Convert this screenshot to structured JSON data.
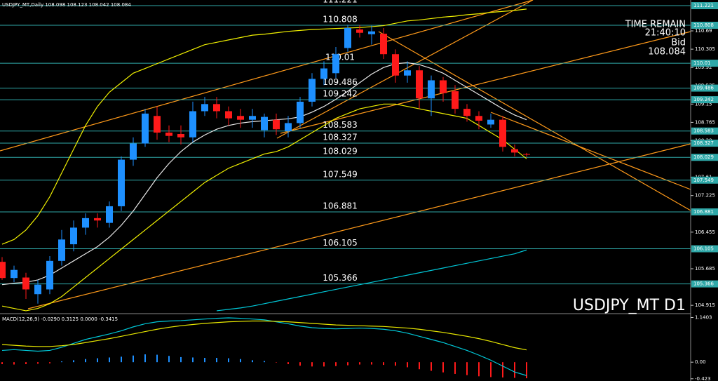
{
  "chart_data": [
    {
      "type": "candlestick",
      "title": "USDJPY_MT,Daily 108.098 108.123 108.042 108.084",
      "symbol_label": "USDJPY_MT D1",
      "time_remain_label": "TIME REMAIN",
      "time_remain": "21:40:10",
      "bid_label": "Bid",
      "bid": 108.084,
      "open": [
        105.83,
        105.49,
        105.5,
        105.15,
        105.25,
        105.85,
        106.2,
        106.55,
        106.75,
        106.65,
        107.0,
        107.98,
        108.32,
        108.9,
        108.55,
        108.52,
        108.45,
        109.0,
        109.15,
        109.0,
        108.9,
        108.82,
        108.6,
        108.82,
        108.58,
        108.75,
        109.2,
        109.68,
        109.8,
        110.33,
        110.72,
        110.62,
        110.63,
        110.2,
        109.75,
        109.86,
        109.27,
        109.65,
        109.42,
        109.05,
        108.9,
        108.72,
        108.82,
        108.2,
        108.098
      ],
      "high": [
        105.93,
        105.75,
        105.6,
        105.45,
        105.95,
        106.5,
        106.7,
        106.85,
        106.85,
        107.1,
        108.05,
        108.45,
        109.05,
        109.1,
        108.7,
        108.7,
        109.2,
        109.3,
        109.3,
        109.1,
        109.05,
        109.05,
        108.95,
        108.95,
        108.9,
        109.3,
        109.8,
        110.05,
        110.35,
        110.82,
        110.81,
        110.8,
        110.75,
        110.3,
        110.05,
        109.95,
        109.75,
        109.72,
        109.55,
        109.15,
        109.0,
        108.95,
        108.9,
        108.3,
        108.123
      ],
      "low": [
        105.45,
        105.4,
        105.05,
        104.95,
        105.15,
        105.75,
        106.05,
        106.4,
        106.55,
        106.55,
        106.9,
        107.85,
        108.25,
        108.4,
        108.35,
        108.3,
        108.35,
        108.9,
        108.85,
        108.7,
        108.65,
        108.65,
        108.45,
        108.5,
        108.45,
        108.65,
        109.1,
        109.55,
        109.7,
        110.25,
        110.55,
        110.4,
        110.1,
        109.6,
        109.6,
        109.05,
        108.9,
        109.2,
        108.95,
        108.78,
        108.62,
        108.65,
        108.15,
        108.05,
        108.042
      ],
      "close": [
        105.49,
        105.66,
        105.25,
        105.35,
        105.85,
        106.3,
        106.55,
        106.75,
        106.7,
        107.0,
        107.98,
        108.32,
        108.95,
        108.55,
        108.48,
        108.45,
        109.0,
        109.15,
        109.0,
        108.85,
        108.82,
        108.9,
        108.88,
        108.62,
        108.75,
        109.2,
        109.68,
        109.9,
        110.2,
        110.75,
        110.65,
        110.68,
        110.2,
        109.75,
        109.86,
        109.27,
        109.65,
        109.38,
        109.05,
        108.9,
        108.8,
        108.82,
        108.25,
        108.13,
        108.084
      ],
      "up_color": "#1e90ff",
      "down_color": "#ff1a1a",
      "ylim": [
        104.74,
        111.34
      ],
      "yticks": [
        110.69,
        110.305,
        109.92,
        109.535,
        109.15,
        108.765,
        108.38,
        107.61,
        107.225,
        106.455,
        105.685,
        104.915
      ],
      "levels": [
        111.221,
        110.808,
        110.01,
        109.486,
        109.242,
        108.583,
        108.327,
        108.029,
        107.549,
        106.881,
        106.105,
        105.366
      ],
      "level_color": "#2fa8a8",
      "lines": [
        {
          "color": "#e8e8e8",
          "values": [
            105.35,
            105.38,
            105.4,
            105.45,
            105.55,
            105.7,
            105.85,
            106.0,
            106.15,
            106.35,
            106.6,
            106.9,
            107.25,
            107.6,
            107.9,
            108.15,
            108.35,
            108.5,
            108.62,
            108.7,
            108.75,
            108.78,
            108.8,
            108.82,
            108.84,
            108.88,
            108.98,
            109.1,
            109.25,
            109.42,
            109.6,
            109.78,
            109.92,
            110.0,
            110.02,
            109.98,
            109.9,
            109.8,
            109.65,
            109.5,
            109.35,
            109.2,
            109.05,
            108.92,
            108.82
          ]
        },
        {
          "color": "#f0f000",
          "values": [
            106.2,
            106.3,
            106.5,
            106.8,
            107.2,
            107.7,
            108.2,
            108.7,
            109.1,
            109.4,
            109.6,
            109.8,
            109.9,
            110.0,
            110.1,
            110.2,
            110.3,
            110.4,
            110.45,
            110.5,
            110.55,
            110.6,
            110.62,
            110.65,
            110.68,
            110.7,
            110.72,
            110.73,
            110.74,
            110.75,
            110.76,
            110.78,
            110.8,
            110.85,
            110.9,
            110.92,
            110.95,
            110.98,
            111.0,
            111.03,
            111.05,
            111.08,
            111.1,
            111.12,
            111.15
          ]
        },
        {
          "color": "#f0f000",
          "values": [
            104.9,
            104.85,
            104.8,
            104.85,
            104.95,
            105.1,
            105.3,
            105.5,
            105.7,
            105.9,
            106.1,
            106.3,
            106.5,
            106.7,
            106.9,
            107.1,
            107.3,
            107.5,
            107.65,
            107.8,
            107.9,
            108.0,
            108.1,
            108.15,
            108.25,
            108.4,
            108.55,
            108.7,
            108.85,
            108.95,
            109.05,
            109.1,
            109.15,
            109.15,
            109.1,
            109.05,
            109.0,
            108.95,
            108.9,
            108.85,
            108.7,
            108.55,
            108.4,
            108.2,
            108.0
          ]
        },
        {
          "color": "#00c8d8",
          "values": [
            null,
            null,
            null,
            null,
            null,
            null,
            null,
            null,
            null,
            null,
            null,
            null,
            null,
            null,
            null,
            null,
            null,
            null,
            104.8,
            104.83,
            104.86,
            104.9,
            104.95,
            105.0,
            105.05,
            105.1,
            105.15,
            105.2,
            105.25,
            105.3,
            105.35,
            105.4,
            105.45,
            105.5,
            105.55,
            105.6,
            105.65,
            105.7,
            105.75,
            105.8,
            105.85,
            105.9,
            105.95,
            106.0,
            106.08
          ]
        }
      ]
    },
    {
      "type": "macd",
      "title": "MACD(12,26,9) -0.0290 0.3125 0.0000 -0.3415",
      "ylim": [
        -0.48,
        1.22
      ],
      "yticks": [
        1.1403,
        {
          "value": 0,
          "label": "0.00"
        },
        -0.423
      ],
      "histogram": {
        "color": "#1e90ff",
        "negative_color": "#ff1a1a",
        "values": [
          -0.05,
          -0.06,
          -0.05,
          -0.04,
          -0.03,
          0.02,
          0.05,
          0.08,
          0.1,
          0.12,
          0.14,
          0.17,
          0.2,
          0.19,
          0.16,
          0.13,
          0.12,
          0.11,
          0.11,
          0.1,
          0.08,
          0.05,
          0.03,
          -0.01,
          -0.05,
          -0.09,
          -0.11,
          -0.11,
          -0.1,
          -0.08,
          -0.06,
          -0.06,
          -0.07,
          -0.09,
          -0.13,
          -0.18,
          -0.22,
          -0.26,
          -0.3,
          -0.33,
          -0.36,
          -0.38,
          -0.39,
          -0.4,
          -0.41
        ]
      },
      "series": [
        {
          "color": "#00c8d8",
          "values": [
            0.3,
            0.32,
            0.3,
            0.28,
            0.3,
            0.38,
            0.48,
            0.58,
            0.65,
            0.72,
            0.8,
            0.9,
            0.98,
            1.03,
            1.05,
            1.06,
            1.08,
            1.1,
            1.12,
            1.13,
            1.12,
            1.1,
            1.08,
            1.03,
            0.98,
            0.92,
            0.88,
            0.86,
            0.85,
            0.86,
            0.87,
            0.86,
            0.84,
            0.8,
            0.74,
            0.66,
            0.58,
            0.5,
            0.4,
            0.3,
            0.18,
            0.05,
            -0.1,
            -0.25,
            -0.3415
          ]
        },
        {
          "color": "#e8e800",
          "values": [
            0.45,
            0.43,
            0.41,
            0.4,
            0.4,
            0.42,
            0.45,
            0.5,
            0.55,
            0.6,
            0.66,
            0.72,
            0.78,
            0.84,
            0.89,
            0.93,
            0.96,
            0.99,
            1.01,
            1.03,
            1.04,
            1.05,
            1.05,
            1.04,
            1.03,
            1.01,
            0.99,
            0.97,
            0.95,
            0.94,
            0.93,
            0.92,
            0.91,
            0.89,
            0.87,
            0.84,
            0.8,
            0.76,
            0.71,
            0.66,
            0.6,
            0.53,
            0.45,
            0.37,
            0.3125
          ]
        }
      ]
    }
  ]
}
